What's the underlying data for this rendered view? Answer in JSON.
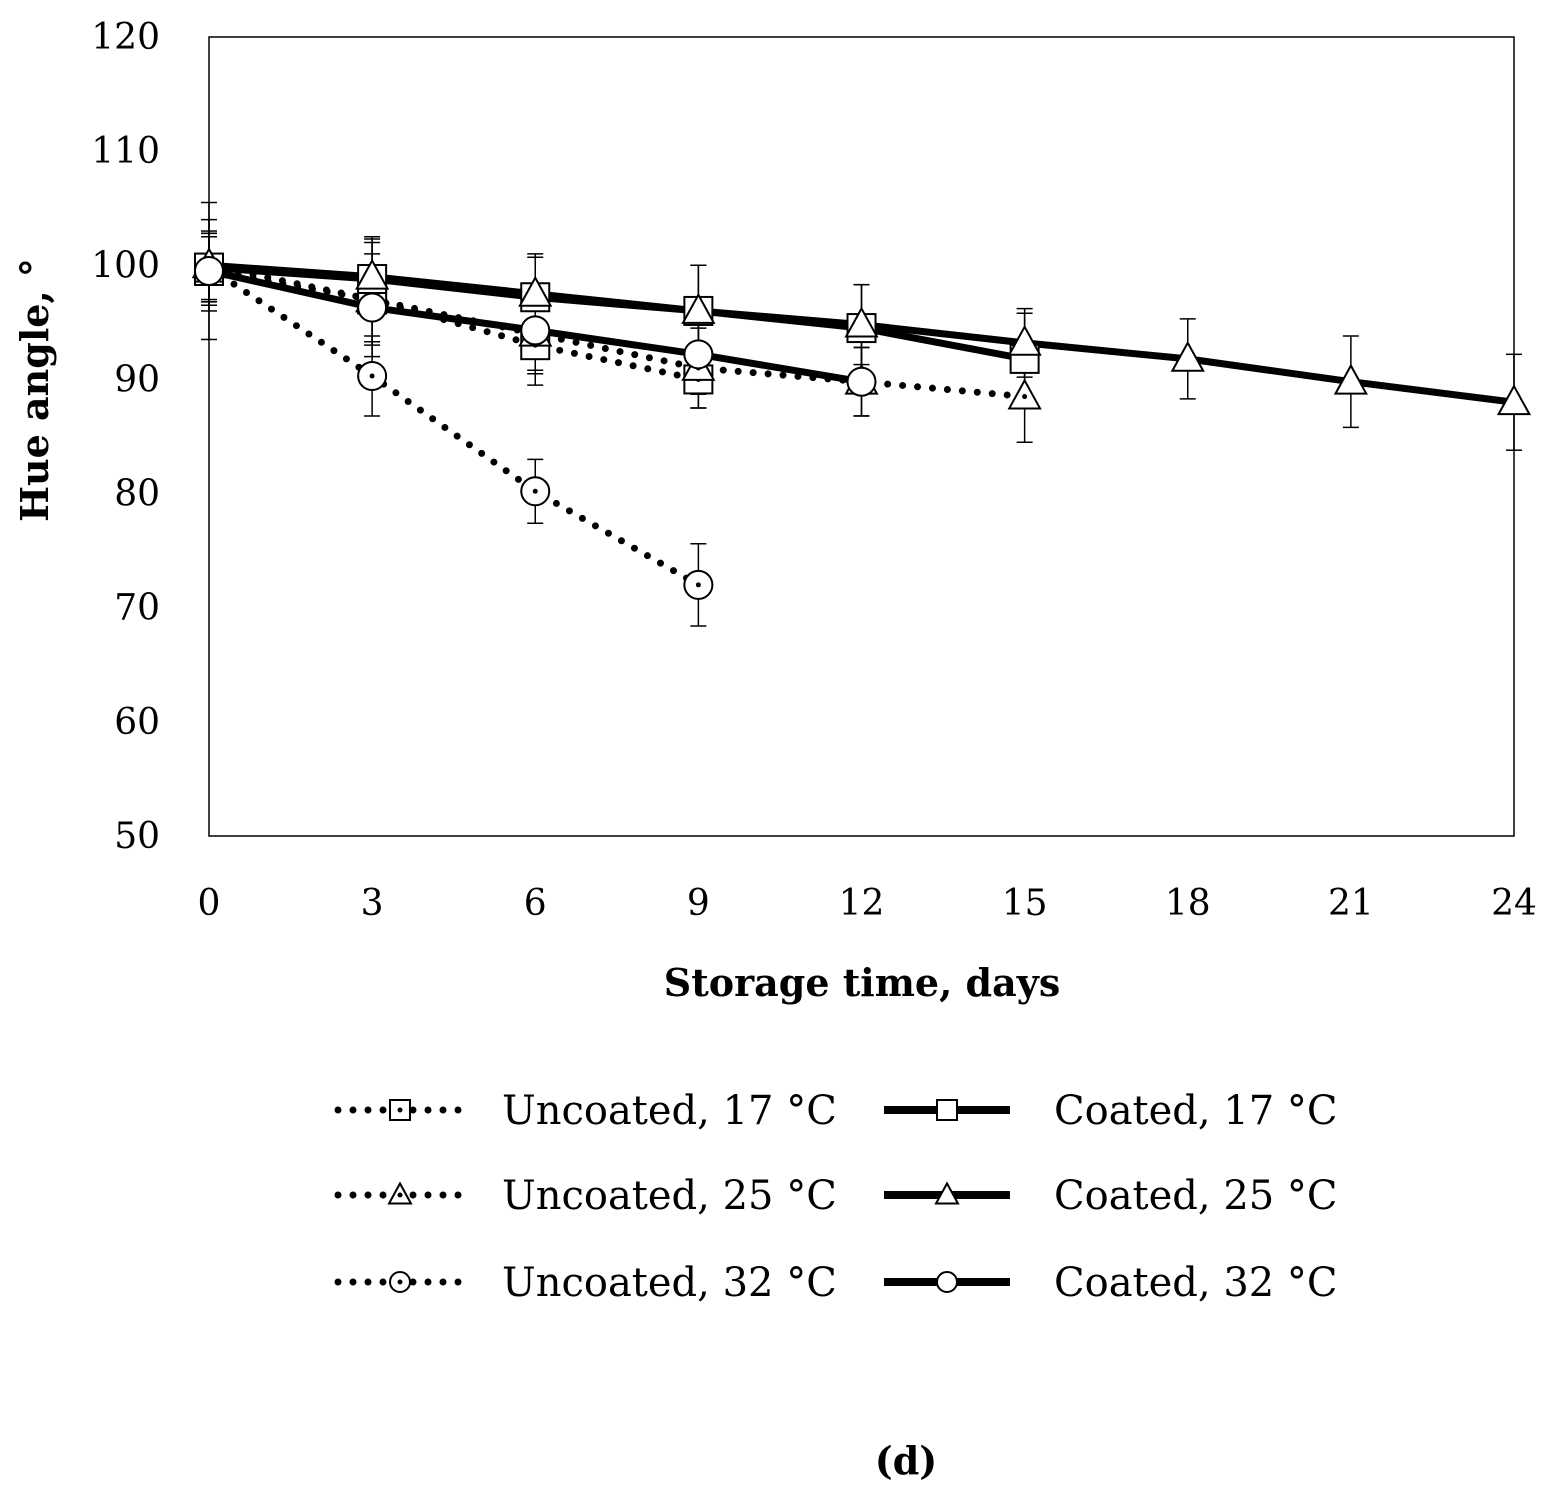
{
  "chart_data": {
    "type": "line",
    "xlabel": "Storage time, days",
    "ylabel": "Hue angle, °",
    "xlim": [
      0,
      24
    ],
    "ylim": [
      50,
      120
    ],
    "xticks": [
      "0",
      "3",
      "6",
      "9",
      "12",
      "15",
      "18",
      "21",
      "24"
    ],
    "yticks": [
      "50",
      "60",
      "70",
      "80",
      "90",
      "100",
      "110",
      "120"
    ],
    "grid": false,
    "legend_position": "bottom",
    "panel_label": "(d)",
    "series": [
      {
        "name": "Uncoated, 17 °C",
        "style": "dotted",
        "marker": "square",
        "x": [
          0,
          3,
          6,
          9
        ],
        "y": [
          99.5,
          97.0,
          93.0,
          90.0
        ],
        "err": [
          6.0,
          5.0,
          3.5,
          2.5
        ]
      },
      {
        "name": "Uncoated, 25 °C",
        "style": "dotted",
        "marker": "triangle",
        "x": [
          0,
          3,
          6,
          9,
          12,
          15
        ],
        "y": [
          100.0,
          97.0,
          94.0,
          91.0,
          89.8,
          88.5
        ],
        "err": [
          4.0,
          4.0,
          3.5,
          3.5,
          3.0,
          4.0
        ]
      },
      {
        "name": "Uncoated, 32 °C",
        "style": "dotted",
        "marker": "circle",
        "x": [
          0,
          3,
          6,
          9
        ],
        "y": [
          99.8,
          90.3,
          80.2,
          72.0
        ],
        "err": [
          3.0,
          3.5,
          2.8,
          3.6
        ]
      },
      {
        "name": "Coated, 17 °C",
        "style": "solid",
        "marker": "square",
        "x": [
          0,
          3,
          6,
          9,
          12,
          15
        ],
        "y": [
          99.8,
          98.8,
          97.2,
          96.0,
          94.5,
          91.8
        ],
        "err": [
          3.0,
          3.5,
          3.5,
          4.0,
          3.8,
          4.0
        ]
      },
      {
        "name": "Coated, 25 °C",
        "style": "solid",
        "marker": "triangle",
        "x": [
          0,
          3,
          6,
          9,
          12,
          15,
          18,
          21,
          24
        ],
        "y": [
          100.0,
          99.0,
          97.5,
          96.0,
          94.8,
          93.2,
          91.8,
          89.8,
          88.0
        ],
        "err": [
          3.0,
          3.5,
          3.5,
          4.0,
          3.5,
          3.0,
          3.5,
          4.0,
          4.2
        ]
      },
      {
        "name": "Coated, 32 °C",
        "style": "solid",
        "marker": "circle",
        "x": [
          0,
          3,
          6,
          9,
          12
        ],
        "y": [
          99.5,
          96.3,
          94.3,
          92.2,
          89.8
        ],
        "err": [
          3.0,
          3.0,
          3.5,
          3.5,
          3.0
        ]
      }
    ]
  }
}
